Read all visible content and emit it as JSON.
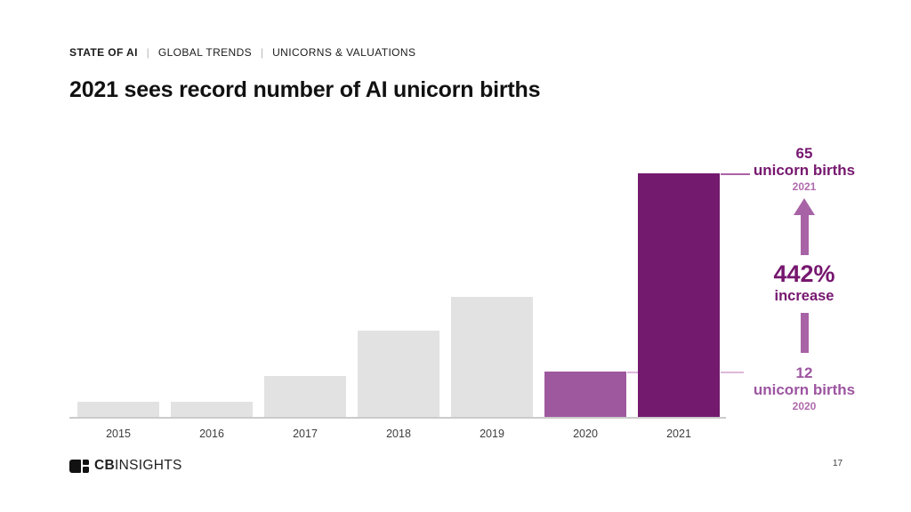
{
  "slide": {
    "breadcrumb": {
      "primary": "STATE OF AI",
      "separator": "|",
      "secondary": "GLOBAL TRENDS",
      "tertiary": "UNICORNS & VALUATIONS"
    },
    "title": "2021 sees record number of AI unicorn births",
    "page_number": "17",
    "logo": {
      "bold": "CB",
      "light": "INSIGHTS"
    }
  },
  "chart_data": {
    "type": "bar",
    "categories": [
      "2015",
      "2016",
      "2017",
      "2018",
      "2019",
      "2020",
      "2021"
    ],
    "values": [
      4,
      4,
      11,
      23,
      32,
      12,
      65
    ],
    "title": "2021 sees record number of AI unicorn births",
    "xlabel": "",
    "ylabel": "",
    "ylim": [
      0,
      65
    ],
    "grid": false,
    "legend": "none",
    "bar_default_color": "#e3e2e2",
    "bar_colors_by_year": {
      "2020": "#9e589e",
      "2021": "#731a6e"
    }
  },
  "annotations": {
    "top": {
      "value": "65",
      "label": "unicorn births",
      "year": "2021"
    },
    "change": {
      "value": "442%",
      "label": "increase"
    },
    "bottom": {
      "value": "12",
      "label": "unicorn births",
      "year": "2020"
    }
  },
  "colors": {
    "dark_purple_text": "#76176f",
    "dark_purple_bar": "#731a6e",
    "medium_purple_bar": "#9e589e",
    "medium_purple_text": "#9c55a0",
    "small_year_purple": "#b06bad",
    "arrow_purple": "#a763a5",
    "leader_line_top": "#ab62a7",
    "leader_line_bottom": "#dcb8da",
    "bar_gray": "#e3e2e2",
    "axis_line": "#cbcbcb"
  }
}
